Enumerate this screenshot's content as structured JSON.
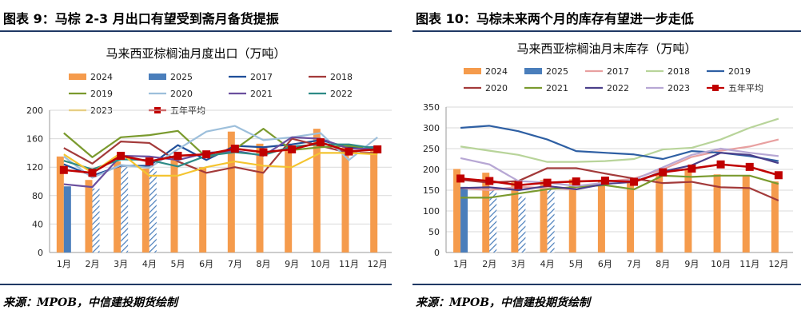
{
  "left": {
    "figure_title": "图表 9：马棕 2-3 月出口有望受到斋月备货提振",
    "source": "来源：MPOB，中信建投期货绘制",
    "chart_data": {
      "type": "bar",
      "title": "马来西亚棕榈油月度出口（万吨）",
      "xlabel": "",
      "ylabel": "",
      "categories": [
        "1月",
        "2月",
        "3月",
        "4月",
        "5月",
        "6月",
        "7月",
        "8月",
        "9月",
        "10月",
        "11月",
        "12月"
      ],
      "ylim": [
        0,
        200
      ],
      "yticks": [
        0,
        40,
        80,
        120,
        160,
        200
      ],
      "grid": true,
      "legend_position": "top",
      "bar_series": [
        {
          "name": "2024",
          "color": "#f59b4c",
          "pattern": "solid",
          "values": [
            135,
            102,
            128,
            118,
            130,
            120,
            170,
            153,
            148,
            174,
            148,
            146
          ]
        },
        {
          "name": "2025",
          "color": "#4a7ebb",
          "pattern": "solid",
          "values": [
            93,
            null,
            null,
            null,
            null,
            null,
            null,
            null,
            null,
            null,
            null,
            null
          ]
        },
        {
          "name": "2025",
          "color": "#4a7ebb",
          "pattern": "hatch",
          "values": [
            null,
            90,
            120,
            118,
            null,
            null,
            null,
            null,
            null,
            null,
            null,
            null
          ]
        }
      ],
      "line_series": [
        {
          "name": "2017",
          "color": "#1f4e99",
          "values": [
            124,
            108,
            122,
            122,
            151,
            130,
            150,
            148,
            152,
            158,
            148,
            148
          ]
        },
        {
          "name": "2018",
          "color": "#a33a3a",
          "values": [
            147,
            125,
            156,
            154,
            128,
            112,
            120,
            112,
            160,
            150,
            140,
            140
          ]
        },
        {
          "name": "2019",
          "color": "#7a9a2e",
          "values": [
            168,
            134,
            162,
            165,
            171,
            134,
            145,
            174,
            144,
            148,
            150,
            146
          ]
        },
        {
          "name": "2020",
          "color": "#9dbfdb",
          "values": [
            135,
            105,
            123,
            119,
            145,
            170,
            178,
            158,
            162,
            168,
            130,
            162
          ]
        },
        {
          "name": "2021",
          "color": "#6b4f9e",
          "values": [
            96,
            92,
            136,
            135,
            130,
            140,
            143,
            136,
            162,
            160,
            146,
            146
          ]
        },
        {
          "name": "2022",
          "color": "#2e8b86",
          "values": [
            129,
            117,
            131,
            130,
            121,
            136,
            141,
            137,
            149,
            152,
            152,
            146
          ]
        },
        {
          "name": "2023",
          "color": "#f4c430",
          "values": [
            138,
            112,
            140,
            108,
            108,
            120,
            128,
            122,
            120,
            140,
            140,
            138
          ]
        },
        {
          "name": "五年平均",
          "color": "#c00000",
          "marker": "square",
          "values": [
            116,
            112,
            136,
            128,
            136,
            138,
            146,
            141,
            145,
            155,
            142,
            145
          ]
        }
      ],
      "legend_order": [
        "2024",
        "2025",
        "2017",
        "2018",
        "2019",
        "2020",
        "2021",
        "2022",
        "2023",
        "五年平均"
      ]
    }
  },
  "right": {
    "figure_title": "图表 10：马棕未来两个月的库存有望进一步走低",
    "source": "来源：MPOB，中信建投期货绘制",
    "chart_data": {
      "type": "bar",
      "title": "马来西亚棕榈油月末库存（万吨）",
      "xlabel": "",
      "ylabel": "",
      "categories": [
        "1月",
        "2月",
        "3月",
        "4月",
        "5月",
        "6月",
        "7月",
        "8月",
        "9月",
        "10月",
        "11月",
        "12月"
      ],
      "ylim": [
        0,
        350
      ],
      "yticks": [
        0,
        50,
        100,
        150,
        200,
        250,
        300,
        350
      ],
      "grid": true,
      "legend_position": "top",
      "bar_series": [
        {
          "name": "2024",
          "color": "#f59b4c",
          "pattern": "solid",
          "values": [
            201,
            192,
            172,
            174,
            176,
            172,
            175,
            188,
            201,
            188,
            184,
            171
          ]
        },
        {
          "name": "2025",
          "color": "#4a7ebb",
          "pattern": "solid",
          "values": [
            158,
            null,
            null,
            null,
            null,
            null,
            null,
            null,
            null,
            null,
            null,
            null
          ]
        },
        {
          "name": "2025",
          "color": "#4a7ebb",
          "pattern": "hatch",
          "values": [
            null,
            150,
            135,
            152,
            null,
            null,
            null,
            null,
            null,
            null,
            null,
            null
          ]
        }
      ],
      "line_series": [
        {
          "name": "2017",
          "color": "#e8a0a0",
          "values": [
            155,
            150,
            158,
            155,
            152,
            170,
            178,
            200,
            230,
            245,
            255,
            272
          ]
        },
        {
          "name": "2018",
          "color": "#b8d49a",
          "values": [
            255,
            245,
            235,
            218,
            218,
            220,
            225,
            248,
            252,
            272,
            300,
            322
          ]
        },
        {
          "name": "2019",
          "color": "#2e5fa3",
          "values": [
            300,
            305,
            292,
            272,
            244,
            240,
            236,
            225,
            244,
            240,
            232,
            220
          ]
        },
        {
          "name": "2020",
          "color": "#a33a3a",
          "values": [
            175,
            168,
            172,
            203,
            203,
            190,
            178,
            167,
            170,
            157,
            155,
            125
          ]
        },
        {
          "name": "2021",
          "color": "#7a9a2e",
          "values": [
            132,
            132,
            142,
            152,
            158,
            162,
            152,
            185,
            182,
            185,
            185,
            165
          ]
        },
        {
          "name": "2022",
          "color": "#4b3f8a",
          "values": [
            155,
            157,
            150,
            160,
            152,
            165,
            170,
            195,
            210,
            240,
            235,
            215
          ]
        },
        {
          "name": "2023",
          "color": "#b7a7d4",
          "values": [
            227,
            212,
            172,
            168,
            160,
            168,
            175,
            205,
            235,
            250,
            240,
            232
          ]
        },
        {
          "name": "五年平均",
          "color": "#c00000",
          "marker": "square",
          "values": [
            178,
            172,
            162,
            168,
            171,
            173,
            170,
            193,
            202,
            212,
            206,
            186
          ]
        }
      ],
      "legend_order": [
        "2024",
        "2025",
        "2017",
        "2018",
        "2019",
        "2020",
        "2021",
        "2022",
        "2023",
        "五年平均"
      ]
    }
  }
}
